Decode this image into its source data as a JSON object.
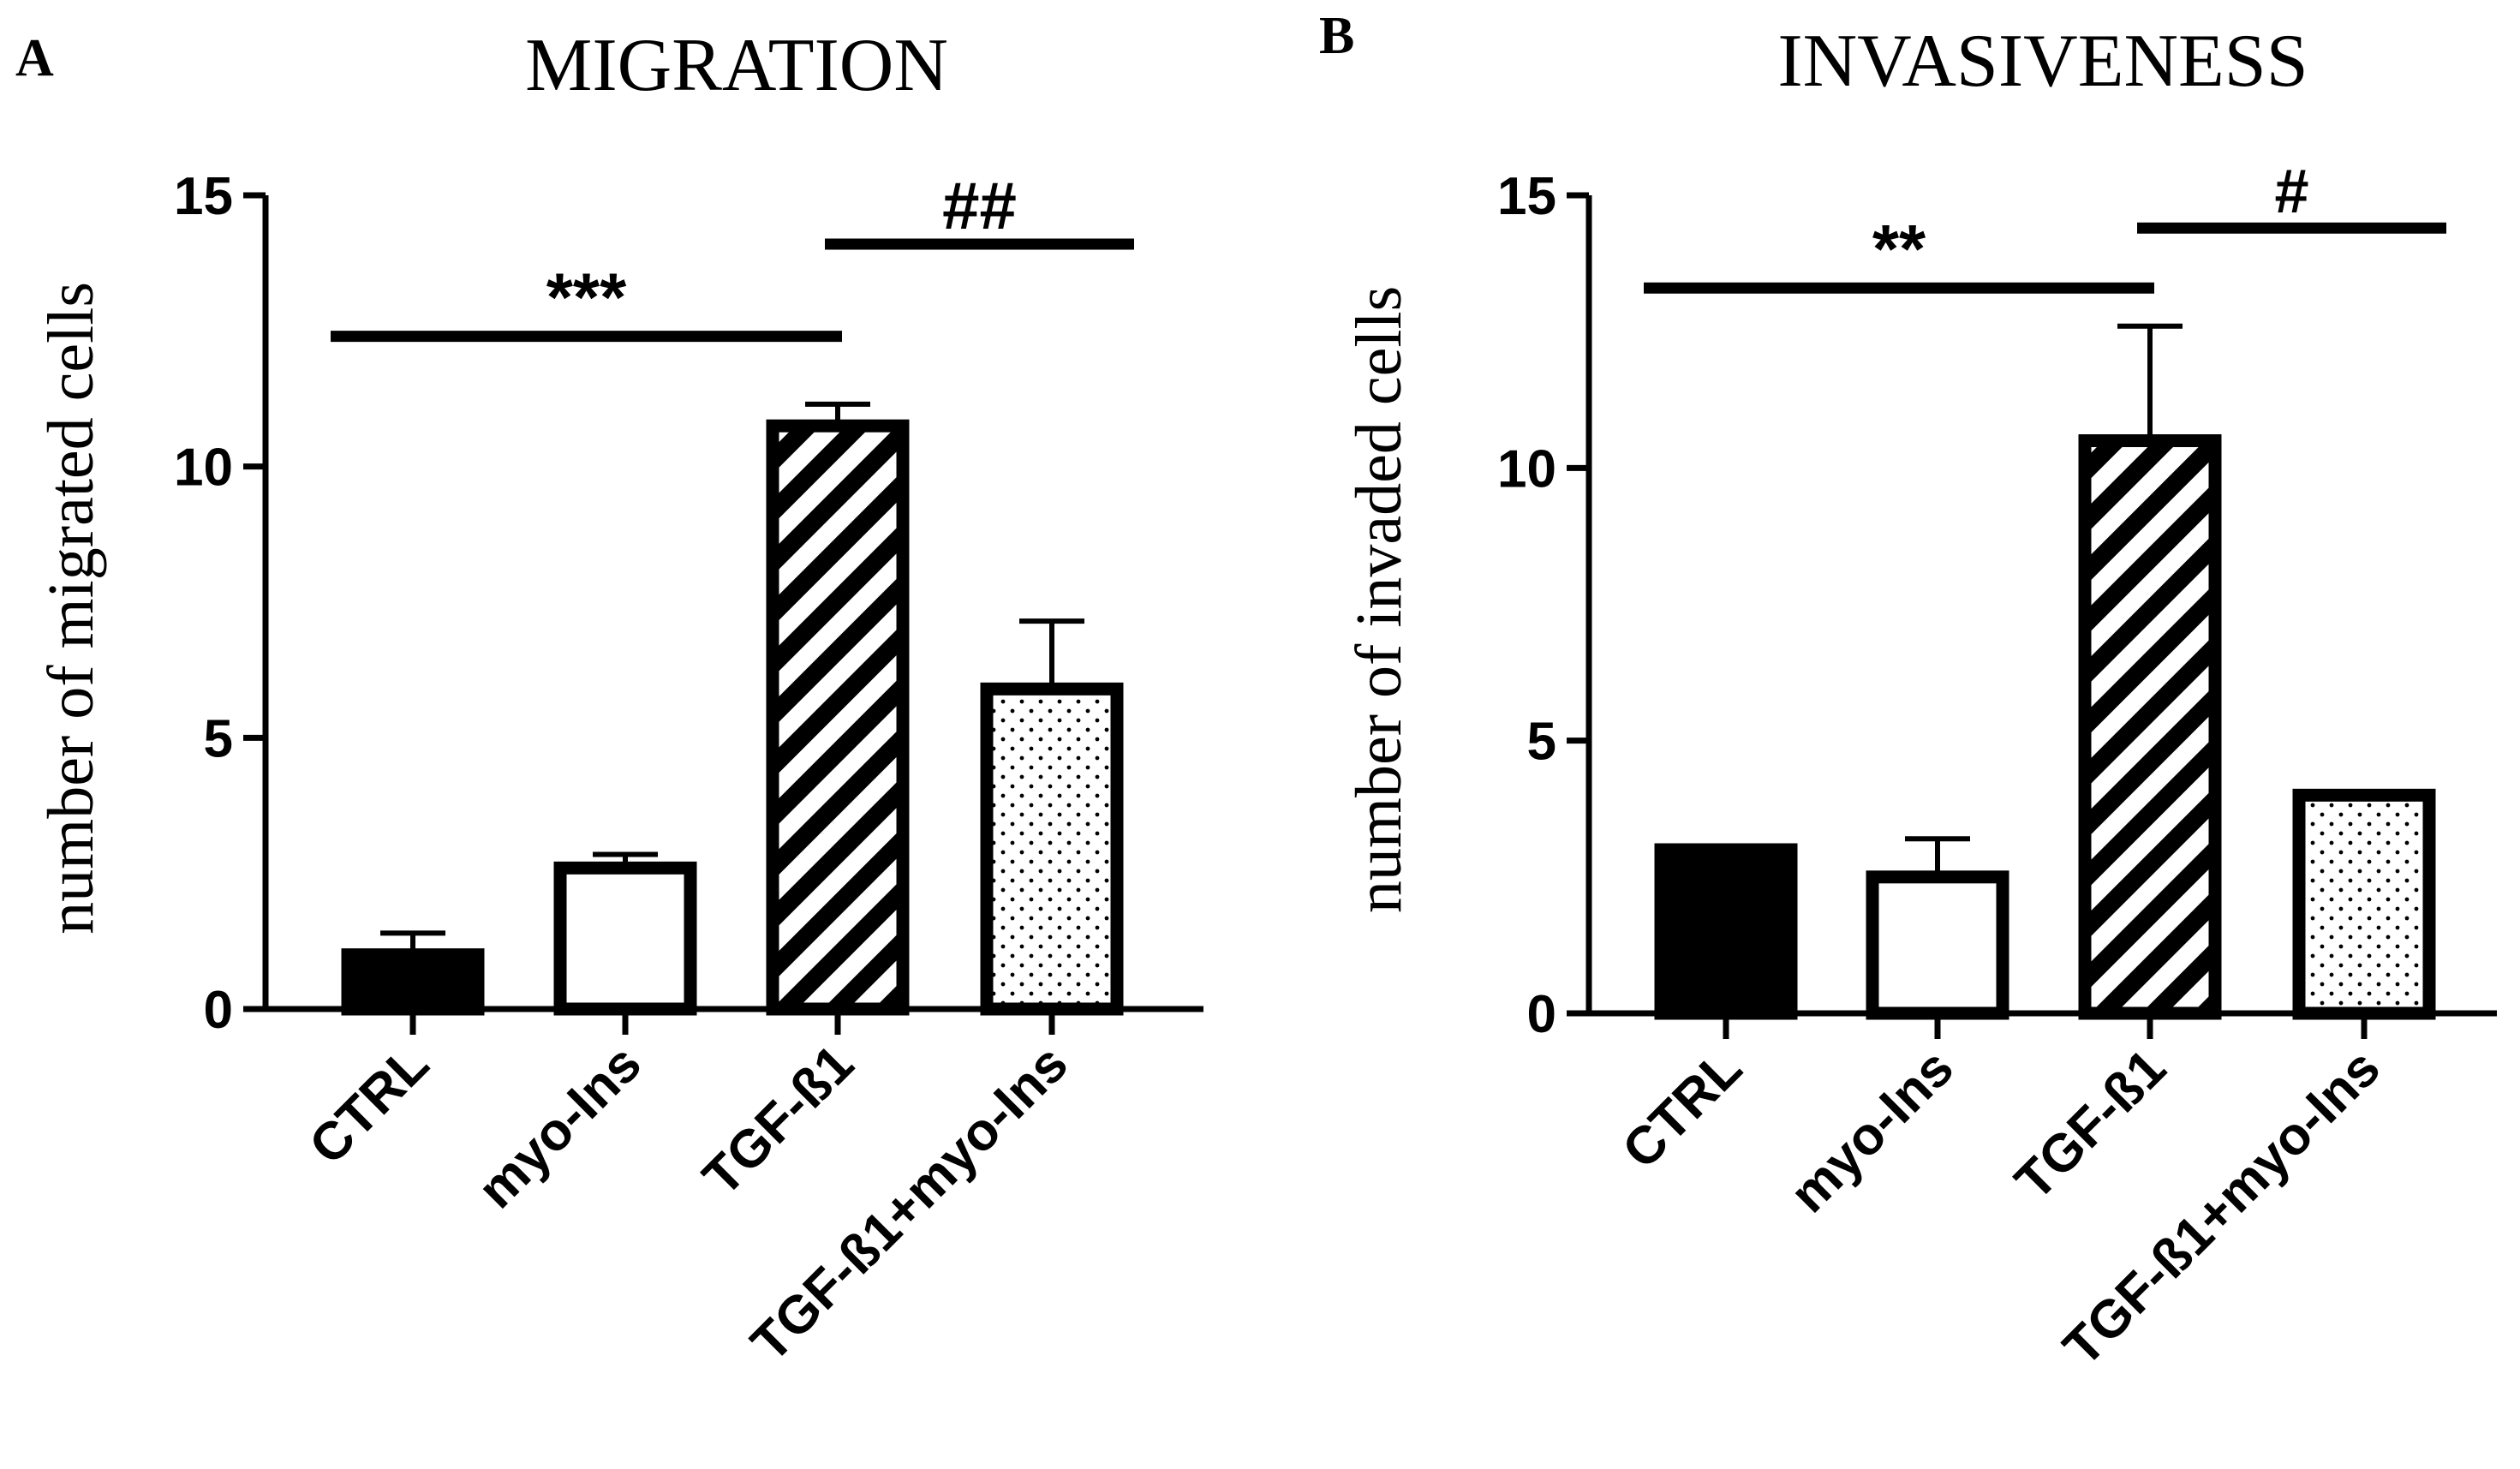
{
  "chart_data": [
    {
      "type": "bar",
      "panel_label": "A",
      "title": "MIGRATION",
      "ylabel": "number of migrated cells",
      "xlabel": "",
      "ylim": [
        0,
        15
      ],
      "yticks": [
        0,
        5,
        10,
        15
      ],
      "categories": [
        "CTRL",
        "myo-Ins",
        "TGF-ß1",
        "TGF-ß1+myo-Ins"
      ],
      "values": [
        1.0,
        2.6,
        10.75,
        5.9
      ],
      "errors": [
        0.4,
        0.25,
        0.4,
        1.25
      ],
      "fills": [
        "solid",
        "empty",
        "hatched",
        "dotted"
      ],
      "significance": [
        {
          "label": "***",
          "from": 0,
          "to": 2,
          "y": 12.4
        },
        {
          "label": "##",
          "from": 2,
          "to": 3,
          "y": 14.1
        }
      ]
    },
    {
      "type": "bar",
      "panel_label": "B",
      "title": "INVASIVENESS",
      "ylabel": "number of invaded cells",
      "xlabel": "",
      "ylim": [
        0,
        15
      ],
      "yticks": [
        0,
        5,
        10,
        15
      ],
      "categories": [
        "CTRL",
        "myo-Ins",
        "TGF-ß1",
        "TGF-ß1+myo-Ins"
      ],
      "values": [
        3.0,
        2.5,
        10.5,
        4.0
      ],
      "errors": [
        0,
        0.7,
        2.1,
        0
      ],
      "fills": [
        "solid",
        "empty",
        "hatched",
        "dotted"
      ],
      "significance": [
        {
          "label": "**",
          "from": 0,
          "to": 2,
          "y": 13.3
        },
        {
          "label": "#",
          "from": 2,
          "to": 3,
          "y": 14.4
        }
      ]
    }
  ],
  "colors": {
    "ink": "#000000",
    "background": "#ffffff"
  }
}
